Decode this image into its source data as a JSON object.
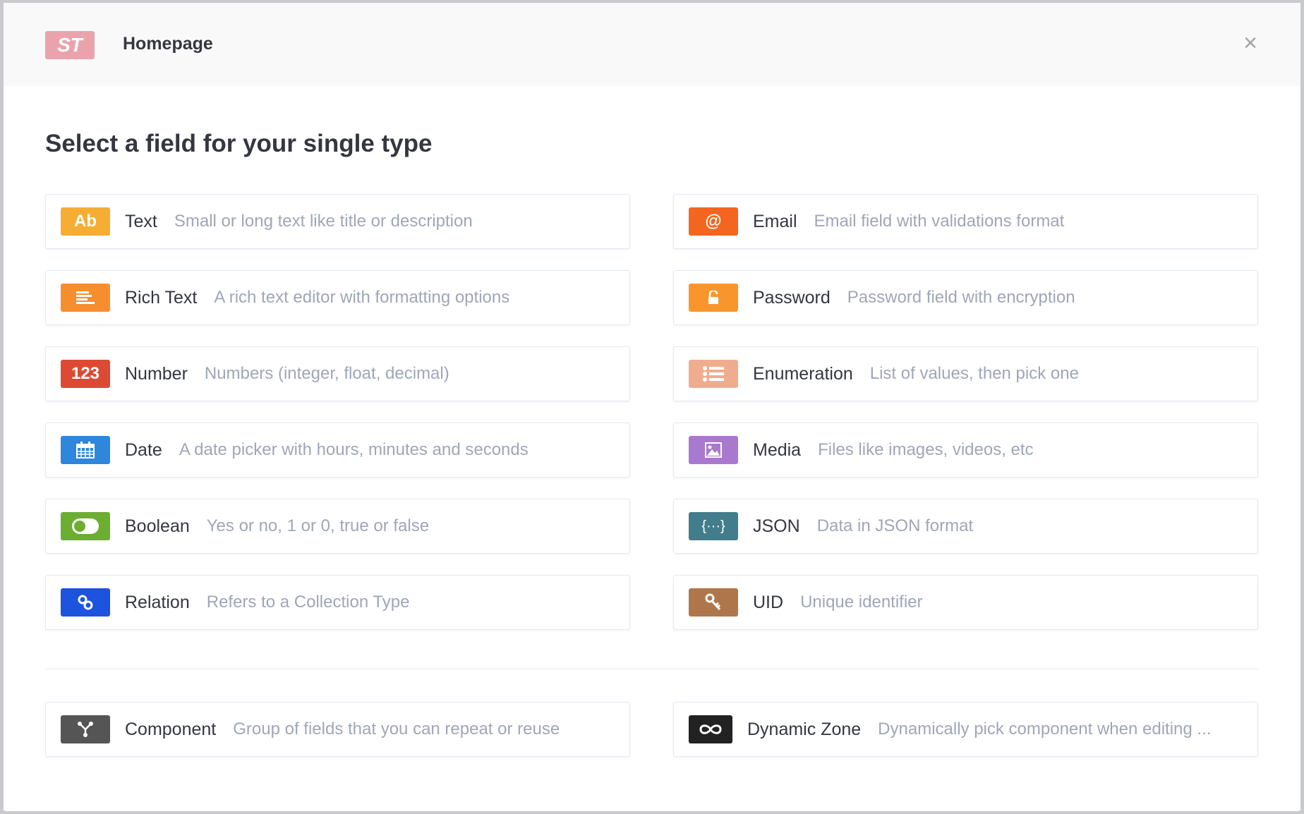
{
  "header": {
    "logo_text": "ST",
    "title": "Homepage",
    "close_icon": "close-icon"
  },
  "heading": "Select a field for your single type",
  "fields": [
    {
      "key": "text",
      "label": "Text",
      "description": "Small or long text like title or description",
      "color": "#f6ad33",
      "icon": "text-ab-icon",
      "icon_text": "Ab"
    },
    {
      "key": "email",
      "label": "Email",
      "description": "Email field with validations format",
      "color": "#f4661f",
      "icon": "at-sign-icon",
      "icon_text": "@"
    },
    {
      "key": "rich-text",
      "label": "Rich Text",
      "description": "A rich text editor with formatting options",
      "color": "#f68e2f",
      "icon": "align-left-icon"
    },
    {
      "key": "password",
      "label": "Password",
      "description": "Password field with encryption",
      "color": "#f8962d",
      "icon": "lock-icon"
    },
    {
      "key": "number",
      "label": "Number",
      "description": "Numbers (integer, float, decimal)",
      "color": "#dc4a33",
      "icon": "number-icon",
      "icon_text": "123"
    },
    {
      "key": "enumeration",
      "label": "Enumeration",
      "description": "List of values, then pick one",
      "color": "#f0ad8e",
      "icon": "list-icon"
    },
    {
      "key": "date",
      "label": "Date",
      "description": "A date picker with hours, minutes and seconds",
      "color": "#2e86dd",
      "icon": "calendar-icon"
    },
    {
      "key": "media",
      "label": "Media",
      "description": "Files like images, videos, etc",
      "color": "#a979cf",
      "icon": "image-icon"
    },
    {
      "key": "boolean",
      "label": "Boolean",
      "description": "Yes or no, 1 or 0, true or false",
      "color": "#6bae31",
      "icon": "toggle-icon"
    },
    {
      "key": "json",
      "label": "JSON",
      "description": "Data in JSON format",
      "color": "#417d8a",
      "icon": "braces-icon",
      "icon_text": "{···}"
    },
    {
      "key": "relation",
      "label": "Relation",
      "description": "Refers to a Collection Type",
      "color": "#1c53df",
      "icon": "link-icon"
    },
    {
      "key": "uid",
      "label": "UID",
      "description": "Unique identifier",
      "color": "#b0764b",
      "icon": "key-icon"
    }
  ],
  "extras": [
    {
      "key": "component",
      "label": "Component",
      "description": "Group of fields that you can repeat or reuse",
      "color": "#555555",
      "icon": "component-icon"
    },
    {
      "key": "dynamic-zone",
      "label": "Dynamic Zone",
      "description": "Dynamically pick component when editing ...",
      "color": "#222222",
      "icon": "infinity-icon"
    }
  ]
}
